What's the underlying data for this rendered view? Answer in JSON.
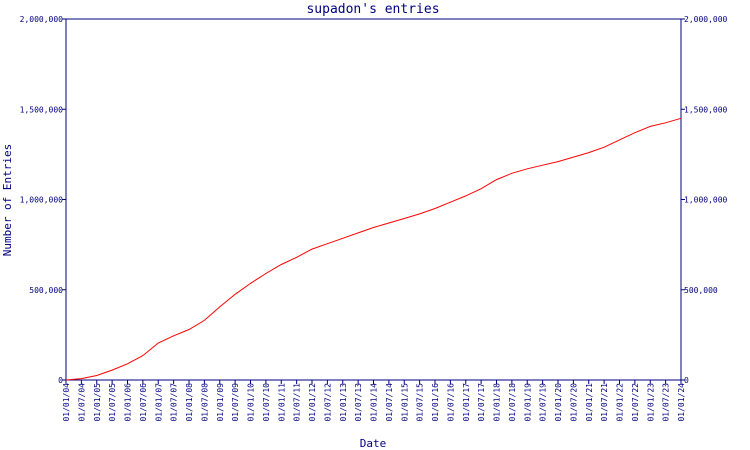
{
  "chart_data": {
    "type": "line",
    "title": "supadon's entries",
    "xlabel": "Date",
    "ylabel": "Number of Entries",
    "x_tick_labels": [
      "01/01/04",
      "01/07/04",
      "01/01/05",
      "01/07/05",
      "01/01/06",
      "01/07/06",
      "01/01/07",
      "01/07/07",
      "01/01/08",
      "01/07/08",
      "01/01/09",
      "01/07/09",
      "01/01/10",
      "01/07/10",
      "01/01/11",
      "01/07/11",
      "01/01/12",
      "01/07/12",
      "01/01/13",
      "01/07/13",
      "01/01/14",
      "01/07/14",
      "01/01/15",
      "01/07/15",
      "01/01/16",
      "01/07/16",
      "01/01/17",
      "01/07/17",
      "01/01/18",
      "01/07/18",
      "01/01/19",
      "01/07/19",
      "01/01/20",
      "01/07/20",
      "01/01/21",
      "01/07/21",
      "01/01/22",
      "01/07/22",
      "01/01/23",
      "01/07/23",
      "01/01/24"
    ],
    "y_tick_labels": [
      "0",
      "500,000",
      "1,000,000",
      "1,500,000",
      "2,000,000"
    ],
    "ylim": [
      0,
      2000000
    ],
    "grid": false,
    "series": [
      {
        "color": "#ff0000",
        "x": [
          "01/01/04",
          "01/07/04",
          "01/01/05",
          "01/07/05",
          "01/01/06",
          "01/07/06",
          "01/01/07",
          "01/07/07",
          "01/01/08",
          "01/07/08",
          "01/01/09",
          "01/07/09",
          "01/01/10",
          "01/07/10",
          "01/01/11",
          "01/07/11",
          "01/01/12",
          "01/07/12",
          "01/01/13",
          "01/07/13",
          "01/01/14",
          "01/07/14",
          "01/01/15",
          "01/07/15",
          "01/01/16",
          "01/07/16",
          "01/01/17",
          "01/07/17",
          "01/01/18",
          "01/07/18",
          "01/01/19",
          "01/07/19",
          "01/01/20",
          "01/07/20",
          "01/01/21",
          "01/07/21",
          "01/01/22",
          "01/07/22",
          "01/01/23",
          "01/07/23",
          "01/01/24"
        ],
        "values": [
          0,
          8000,
          25000,
          55000,
          90000,
          135000,
          205000,
          245000,
          280000,
          330000,
          405000,
          475000,
          535000,
          590000,
          640000,
          680000,
          725000,
          755000,
          785000,
          815000,
          845000,
          870000,
          895000,
          920000,
          950000,
          985000,
          1020000,
          1060000,
          1110000,
          1145000,
          1170000,
          1190000,
          1210000,
          1235000,
          1260000,
          1290000,
          1330000,
          1370000,
          1405000,
          1425000,
          1450000
        ]
      }
    ]
  }
}
